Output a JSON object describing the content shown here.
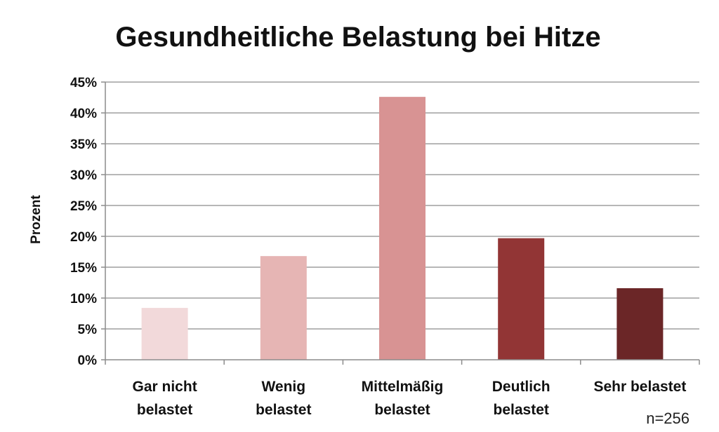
{
  "chart_data": {
    "type": "bar",
    "title": "Gesundheitliche Belastung bei Hitze",
    "ylabel": "Prozent",
    "xlabel": "",
    "ylim": [
      0,
      45
    ],
    "y_ticks": [
      0,
      5,
      10,
      15,
      20,
      25,
      30,
      35,
      40,
      45
    ],
    "y_tick_labels": [
      "0%",
      "5%",
      "10%",
      "15%",
      "20%",
      "25%",
      "30%",
      "35%",
      "40%",
      "45%"
    ],
    "grid": true,
    "categories": [
      [
        "Gar nicht",
        "belastet"
      ],
      [
        "Wenig",
        "belastet"
      ],
      [
        "Mittelmäßig",
        "belastet"
      ],
      [
        "Deutlich",
        "belastet"
      ],
      [
        "Sehr belastet"
      ]
    ],
    "values": [
      8.4,
      16.8,
      42.6,
      19.7,
      11.6
    ],
    "colors": [
      "#f2d9da",
      "#e6b5b4",
      "#d89393",
      "#923535",
      "#6b2627"
    ],
    "annotation": "n=256"
  }
}
